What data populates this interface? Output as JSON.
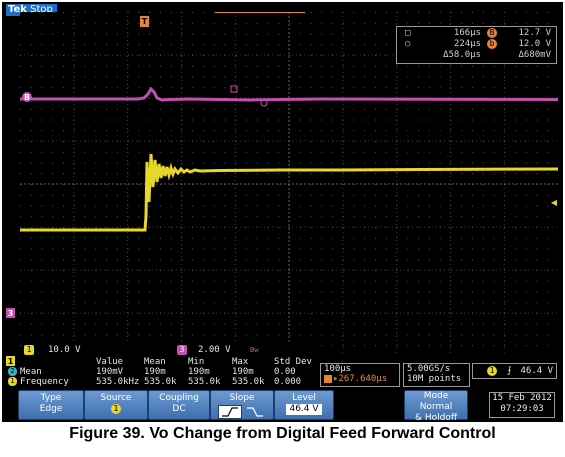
{
  "header": {
    "brand": "Tek",
    "run_state": "Stop"
  },
  "markers": {
    "trigger_pos": "T",
    "ch_b": "B",
    "ch3": "3",
    "ch1": "1",
    "trig_level": "◀"
  },
  "cursor_readout": {
    "row1": {
      "time": "166µs",
      "ch": "B",
      "volt": "12.7 V"
    },
    "row2": {
      "time": "224µs",
      "ch": "b",
      "volt": "12.0 V"
    },
    "row3": {
      "dtime": "Δ58.0µs",
      "dvolt": "Δ680mV"
    }
  },
  "channels": {
    "ch1": {
      "label": "1",
      "scale": "10.0 V"
    },
    "ch3": {
      "label": "3",
      "scale": "2.00 V",
      "bw": "Bw"
    }
  },
  "measurements": {
    "headers": [
      "Value",
      "Mean",
      "Min",
      "Max",
      "Std Dev"
    ],
    "rows": [
      {
        "ch": "2",
        "name": "Mean",
        "values": [
          "190mV",
          "190m",
          "190m",
          "190m",
          "0.00"
        ]
      },
      {
        "ch": "1",
        "name": "Frequency",
        "values": [
          "535.0kHz",
          "535.0k",
          "535.0k",
          "535.0k",
          "0.000"
        ]
      }
    ]
  },
  "horizontal": {
    "scale": "100µs",
    "position": "▸267.640µs"
  },
  "acquisition": {
    "rate": "5.00GS/s",
    "points": "10M points"
  },
  "trigger": {
    "ch": "1",
    "slope_symbol": "⨍",
    "level": "46.4 V"
  },
  "menu": {
    "type": {
      "label": "Type",
      "value": "Edge"
    },
    "source": {
      "label": "Source",
      "value": "1"
    },
    "coupling": {
      "label": "Coupling",
      "value": "DC"
    },
    "slope": {
      "label": "Slope"
    },
    "level": {
      "label": "Level",
      "value": "46.4 V"
    },
    "mode": {
      "label": "Mode",
      "value1": "Normal",
      "value2": "& Holdoff"
    }
  },
  "datetime": {
    "date": "15 Feb 2012",
    "time": "07:29:03"
  },
  "caption": "Figure 39. Vo Change from Digital Feed Forward Control",
  "colors": {
    "ch1": "#e6d72a",
    "ch3": "#c34fb0",
    "panel": "#3d6fb0",
    "accent": "#e8833a"
  }
}
